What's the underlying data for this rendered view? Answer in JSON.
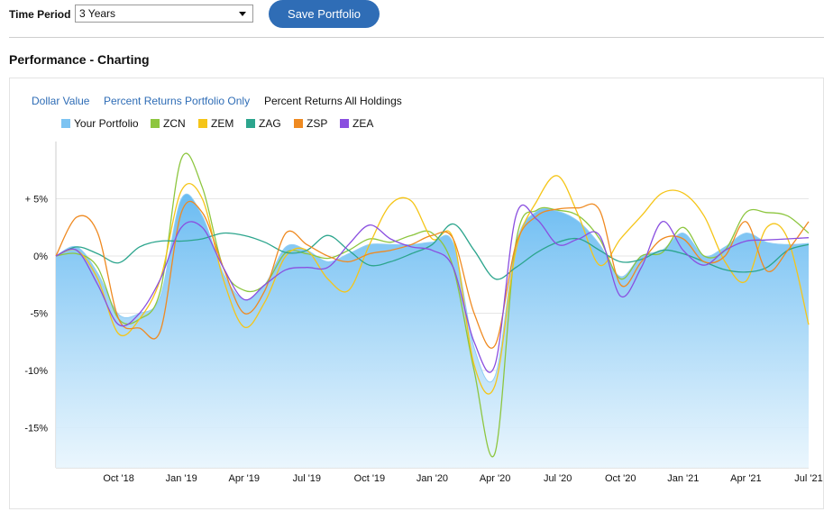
{
  "toolbar": {
    "time_period_label": "Time Period",
    "time_period_value": "3 Years",
    "save_label": "Save Portfolio"
  },
  "section": {
    "title": "Performance - Charting"
  },
  "tabs": [
    {
      "label": "Dollar Value",
      "active": false
    },
    {
      "label": "Percent Returns Portfolio Only",
      "active": false
    },
    {
      "label": "Percent Returns All Holdings",
      "active": true
    }
  ],
  "colors": {
    "link": "#2f6db6",
    "button": "#2f6db6"
  },
  "chart_data": {
    "type": "line",
    "ylim": [
      -18.5,
      10
    ],
    "yticks": [
      {
        "value": 5,
        "label": "+ 5%"
      },
      {
        "value": 0,
        "label": "0%"
      },
      {
        "value": -5,
        "label": "-5%"
      },
      {
        "value": -10,
        "label": "-10%"
      },
      {
        "value": -15,
        "label": "-15%"
      }
    ],
    "x_ticks": [
      "Oct '18",
      "Jan '19",
      "Apr '19",
      "Jul '19",
      "Oct '19",
      "Jan '20",
      "Apr '20",
      "Jul '20",
      "Oct '20",
      "Jan '21",
      "Apr '21",
      "Jul '21"
    ],
    "x": [
      "Jul '18",
      "Aug '18",
      "Sep '18",
      "Oct '18",
      "Nov '18",
      "Dec '18",
      "Jan '19",
      "Feb '19",
      "Mar '19",
      "Apr '19",
      "May '19",
      "Jun '19",
      "Jul '19",
      "Aug '19",
      "Sep '19",
      "Oct '19",
      "Nov '19",
      "Dec '19",
      "Jan '20",
      "Feb '20",
      "Mar '20",
      "Apr '20",
      "May '20",
      "Jun '20",
      "Jul '20",
      "Aug '20",
      "Sep '20",
      "Oct '20",
      "Nov '20",
      "Dec '20",
      "Jan '21",
      "Feb '21",
      "Mar '21",
      "Apr '21",
      "May '21",
      "Jun '21",
      "Jul '21"
    ],
    "grid": true,
    "legend_position": "top-left",
    "series": [
      {
        "name": "Your Portfolio",
        "style": "area",
        "color": "#7cc3f2",
        "values": [
          0,
          0.8,
          -1.5,
          -5.1,
          -5.0,
          -3.5,
          5.0,
          3.5,
          -1.5,
          -3.8,
          -2.5,
          0.8,
          0.5,
          -0.5,
          0.2,
          1.0,
          1.0,
          1.0,
          1.2,
          1.1,
          -8.0,
          -10.5,
          1.0,
          3.9,
          3.9,
          3.0,
          1.0,
          -1.8,
          0.0,
          0.5,
          2.0,
          0.0,
          0.8,
          2.0,
          1.2,
          1.0,
          1.1
        ]
      },
      {
        "name": "ZCN",
        "style": "line",
        "color": "#8dc63f",
        "values": [
          0,
          0.2,
          -1.0,
          -5.5,
          -5.5,
          -3.0,
          8.5,
          6.0,
          -1.0,
          -3.0,
          -2.5,
          0.3,
          0.2,
          -0.2,
          0.5,
          1.5,
          1.2,
          1.8,
          2.0,
          -1.0,
          -10.0,
          -17.2,
          1.2,
          4.0,
          4.0,
          3.5,
          1.5,
          -2.0,
          0.0,
          0.3,
          2.5,
          0.0,
          0.5,
          3.8,
          3.8,
          3.5,
          2.0
        ]
      },
      {
        "name": "ZEM",
        "style": "line",
        "color": "#f5c518",
        "values": [
          0,
          0.5,
          -2.0,
          -6.8,
          -5.5,
          -2.0,
          5.7,
          5.0,
          -2.0,
          -6.2,
          -4.0,
          0.0,
          0.5,
          -2.0,
          -3.0,
          1.0,
          4.5,
          4.8,
          1.5,
          1.5,
          -9.5,
          -11.3,
          0.5,
          4.8,
          7.0,
          3.5,
          -0.8,
          1.5,
          3.5,
          5.5,
          5.5,
          3.5,
          -0.5,
          -2.2,
          2.5,
          1.5,
          -6.0
        ]
      },
      {
        "name": "ZAG",
        "style": "line",
        "color": "#2ca58d",
        "values": [
          0,
          0.8,
          0.2,
          -0.6,
          0.8,
          1.3,
          1.3,
          1.5,
          2.0,
          1.8,
          1.2,
          0.3,
          0.5,
          1.8,
          0.5,
          -0.8,
          -0.5,
          0.2,
          1.0,
          2.8,
          0.5,
          -2.0,
          -1.0,
          0.3,
          1.2,
          1.5,
          0.5,
          -0.5,
          -0.3,
          0.5,
          0.2,
          -0.5,
          -1.2,
          -1.4,
          -1.0,
          0.5,
          1.0
        ]
      },
      {
        "name": "ZSP",
        "style": "line",
        "color": "#ef8a21",
        "values": [
          0,
          3.4,
          2.0,
          -5.5,
          -6.3,
          -6.5,
          3.8,
          3.8,
          -1.0,
          -5.0,
          -3.0,
          2.0,
          1.0,
          0.0,
          -0.5,
          0.2,
          0.5,
          1.0,
          1.8,
          1.5,
          -5.0,
          -7.8,
          1.0,
          3.5,
          4.1,
          4.2,
          4.0,
          -2.5,
          -0.5,
          1.5,
          1.5,
          -0.5,
          0.0,
          3.0,
          -1.3,
          0.5,
          3.0
        ]
      },
      {
        "name": "ZEA",
        "style": "line",
        "color": "#8a4fe0",
        "values": [
          0,
          0.5,
          -2.5,
          -6.0,
          -5.0,
          -2.0,
          2.5,
          2.5,
          -1.0,
          -3.8,
          -2.5,
          -1.2,
          -1.0,
          -1.0,
          1.0,
          2.7,
          1.5,
          0.8,
          0.5,
          -1.0,
          -7.5,
          -9.5,
          3.5,
          3.2,
          1.0,
          1.5,
          1.8,
          -3.5,
          -1.0,
          3.0,
          0.5,
          -0.8,
          0.5,
          1.3,
          1.4,
          1.5,
          1.6
        ]
      }
    ]
  }
}
